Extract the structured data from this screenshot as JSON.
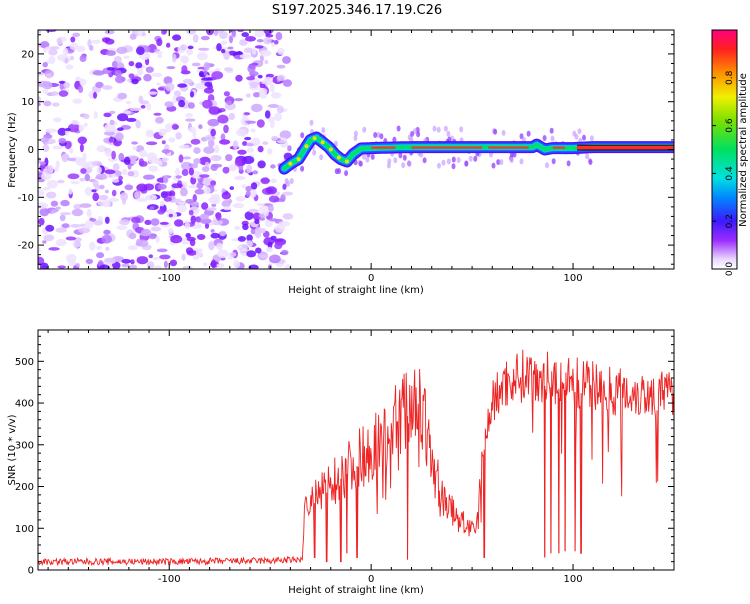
{
  "title": "S197.2025.346.17.19.C26",
  "chart_data": [
    {
      "type": "heatmap",
      "xlabel": "Height of straight line (km)",
      "ylabel": "Frequency (Hz)",
      "xlim": [
        -165,
        150
      ],
      "ylim": [
        -25,
        25
      ],
      "xticks": [
        -100,
        0,
        100
      ],
      "yticks": [
        -20,
        -10,
        0,
        10,
        20
      ],
      "noise_region_end_km": -43,
      "ridge": {
        "x": [
          -43,
          -40,
          -36,
          -33,
          -30,
          -27,
          -24,
          -21,
          -18,
          -15,
          -12,
          -9,
          -5,
          0,
          10,
          20,
          40,
          60,
          80,
          82,
          84,
          86,
          90,
          100,
          110,
          150
        ],
        "y": [
          -4,
          -3,
          -2,
          0,
          2,
          2.5,
          1.5,
          0.5,
          -1,
          -2,
          -2.5,
          -1,
          0.2,
          0.3,
          0.4,
          0.5,
          0.5,
          0.5,
          0.5,
          1,
          0.5,
          0,
          0.3,
          0.3,
          0.5,
          0.5
        ]
      },
      "colorbar": {
        "label": "Normalized spectral amplitude",
        "range": [
          0,
          1
        ],
        "ticks": [
          "0.0",
          "0.2",
          "0.4",
          "0.6",
          "0.8"
        ],
        "tick_values": [
          0,
          0.2,
          0.4,
          0.6,
          0.8
        ]
      }
    },
    {
      "type": "line",
      "xlabel": "Height of straight line (km)",
      "ylabel": "SNR (10 * v/v)",
      "xlim": [
        -165,
        150
      ],
      "ylim": [
        0,
        575
      ],
      "xticks": [
        -100,
        0,
        100
      ],
      "yticks": [
        0,
        100,
        200,
        300,
        400,
        500
      ],
      "color": "#ee2222",
      "envelope": {
        "x": [
          -165,
          -100,
          -50,
          -34,
          -33,
          -25,
          -15,
          -5,
          5,
          10,
          15,
          20,
          22,
          25,
          30,
          35,
          40,
          45,
          50,
          52,
          55,
          58,
          60,
          65,
          70,
          80,
          90,
          100,
          110,
          120,
          130,
          140,
          150
        ],
        "y": [
          20,
          20,
          22,
          25,
          150,
          180,
          230,
          270,
          310,
          340,
          370,
          400,
          420,
          380,
          260,
          180,
          140,
          115,
          100,
          90,
          280,
          350,
          400,
          440,
          460,
          470,
          460,
          450,
          440,
          430,
          425,
          420,
          420
        ]
      },
      "dips": [
        {
          "x": -28,
          "y": 30
        },
        {
          "x": -22,
          "y": 20
        },
        {
          "x": -15,
          "y": 20
        },
        {
          "x": -12,
          "y": 40
        },
        {
          "x": -7,
          "y": 30
        },
        {
          "x": 18,
          "y": 25
        },
        {
          "x": 56,
          "y": 30
        },
        {
          "x": 86,
          "y": 30
        },
        {
          "x": 89,
          "y": 40
        },
        {
          "x": 93,
          "y": 40
        },
        {
          "x": 96,
          "y": 45
        },
        {
          "x": 101,
          "y": 45
        },
        {
          "x": 104,
          "y": 40
        }
      ]
    }
  ]
}
